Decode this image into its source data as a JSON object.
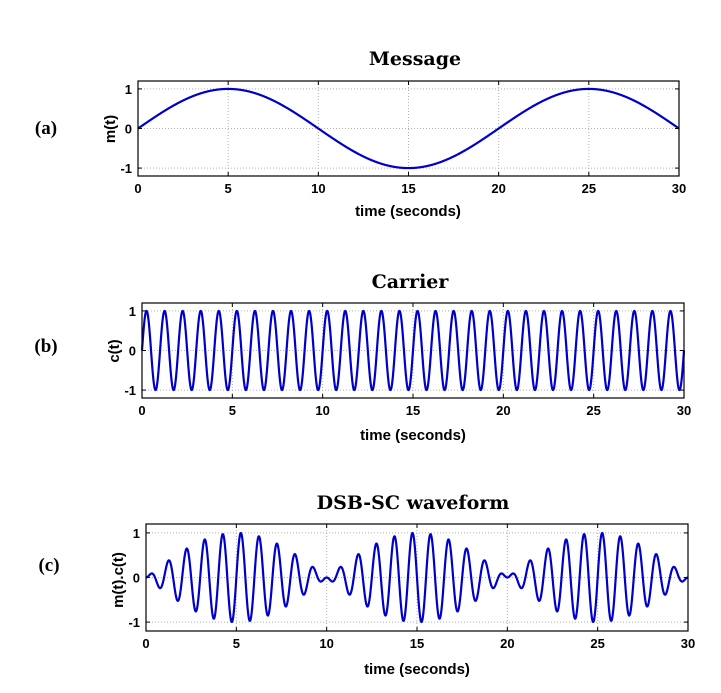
{
  "chart_data": [
    {
      "type": "line",
      "panel_label": "(a)",
      "title": "Message",
      "xlabel": "time (seconds)",
      "ylabel": "m(t)",
      "xlim": [
        0,
        30
      ],
      "ylim": [
        -1.2,
        1.2
      ],
      "xticks": [
        0,
        5,
        10,
        15,
        20,
        25,
        30
      ],
      "yticks": [
        -1,
        0,
        1
      ],
      "grid": true,
      "series": [
        {
          "function": "sin(2*pi*t/20)",
          "period": 20,
          "amplitude": 1,
          "color": "#0000cc"
        }
      ]
    },
    {
      "type": "line",
      "panel_label": "(b)",
      "title": "Carrier",
      "xlabel": "time (seconds)",
      "ylabel": "c(t)",
      "xlim": [
        0,
        30
      ],
      "ylim": [
        -1.2,
        1.2
      ],
      "xticks": [
        0,
        5,
        10,
        15,
        20,
        25,
        30
      ],
      "yticks": [
        -1,
        0,
        1
      ],
      "grid": true,
      "series": [
        {
          "function": "sin(2*pi*t)",
          "period": 1,
          "amplitude": 1,
          "cycles_shown": 30,
          "color": "#0000cc"
        }
      ]
    },
    {
      "type": "line",
      "panel_label": "(c)",
      "title": "DSB-SC waveform",
      "xlabel": "time (seconds)",
      "ylabel": "m(t).c(t)",
      "xlim": [
        0,
        30
      ],
      "ylim": [
        -1.2,
        1.2
      ],
      "xticks": [
        0,
        5,
        10,
        15,
        20,
        25,
        30
      ],
      "yticks": [
        -1,
        0,
        1
      ],
      "grid": true,
      "series": [
        {
          "function": "sin(2*pi*t/20) * sin(2*pi*t)",
          "envelope": "|sin(2*pi*t/20)|",
          "color": "#0000cc"
        }
      ]
    }
  ]
}
